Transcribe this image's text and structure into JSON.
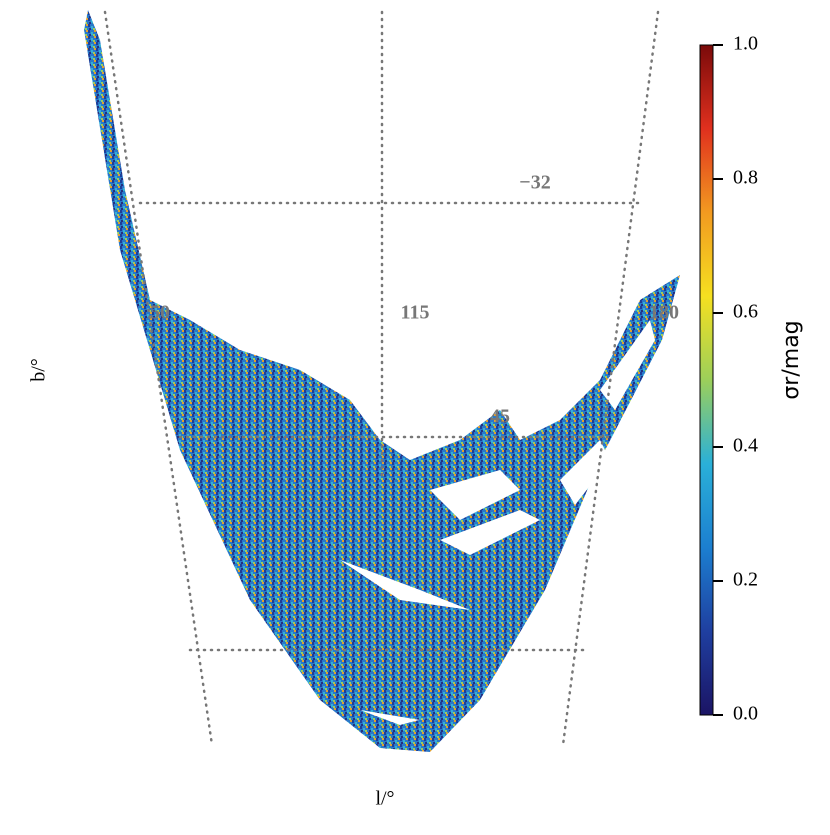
{
  "chart_data": {
    "type": "skymap",
    "xlabel": "l/°",
    "ylabel": "b/°",
    "grid_labels": [
      "−32",
      "115",
      "180",
      "45",
      "50"
    ],
    "colorbar": {
      "label": "σr/mag",
      "clim": [
        0,
        1
      ],
      "cticks": [
        {
          "value": 0,
          "label": "0.0"
        },
        {
          "value": 0.2,
          "label": "0.2"
        },
        {
          "value": 0.4,
          "label": "0.4"
        },
        {
          "value": 0.6,
          "label": "0.6"
        },
        {
          "value": 0.8,
          "label": "0.8"
        },
        {
          "value": 1,
          "label": "1.0"
        }
      ],
      "colormap": [
        "#1b1464",
        "#1f3fa0",
        "#1c7fd0",
        "#2ab0d8",
        "#9ccf5a",
        "#f5e020",
        "#f29a20",
        "#e0301e",
        "#7a0a0a"
      ]
    }
  }
}
